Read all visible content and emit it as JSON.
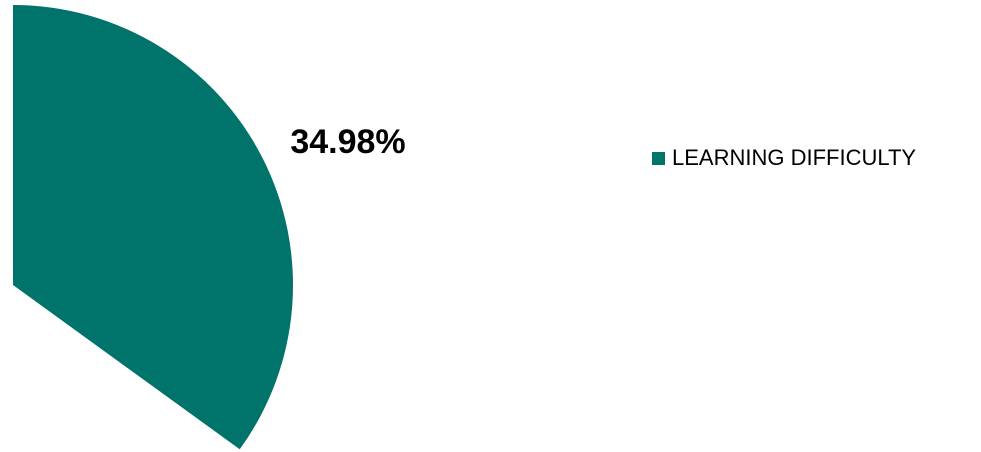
{
  "chart_data": {
    "type": "pie",
    "categories": [
      "LEARNING DIFFICULTY"
    ],
    "values": [
      34.98
    ],
    "value_labels": [
      "34.98%"
    ],
    "colors": [
      "#00736a"
    ]
  }
}
